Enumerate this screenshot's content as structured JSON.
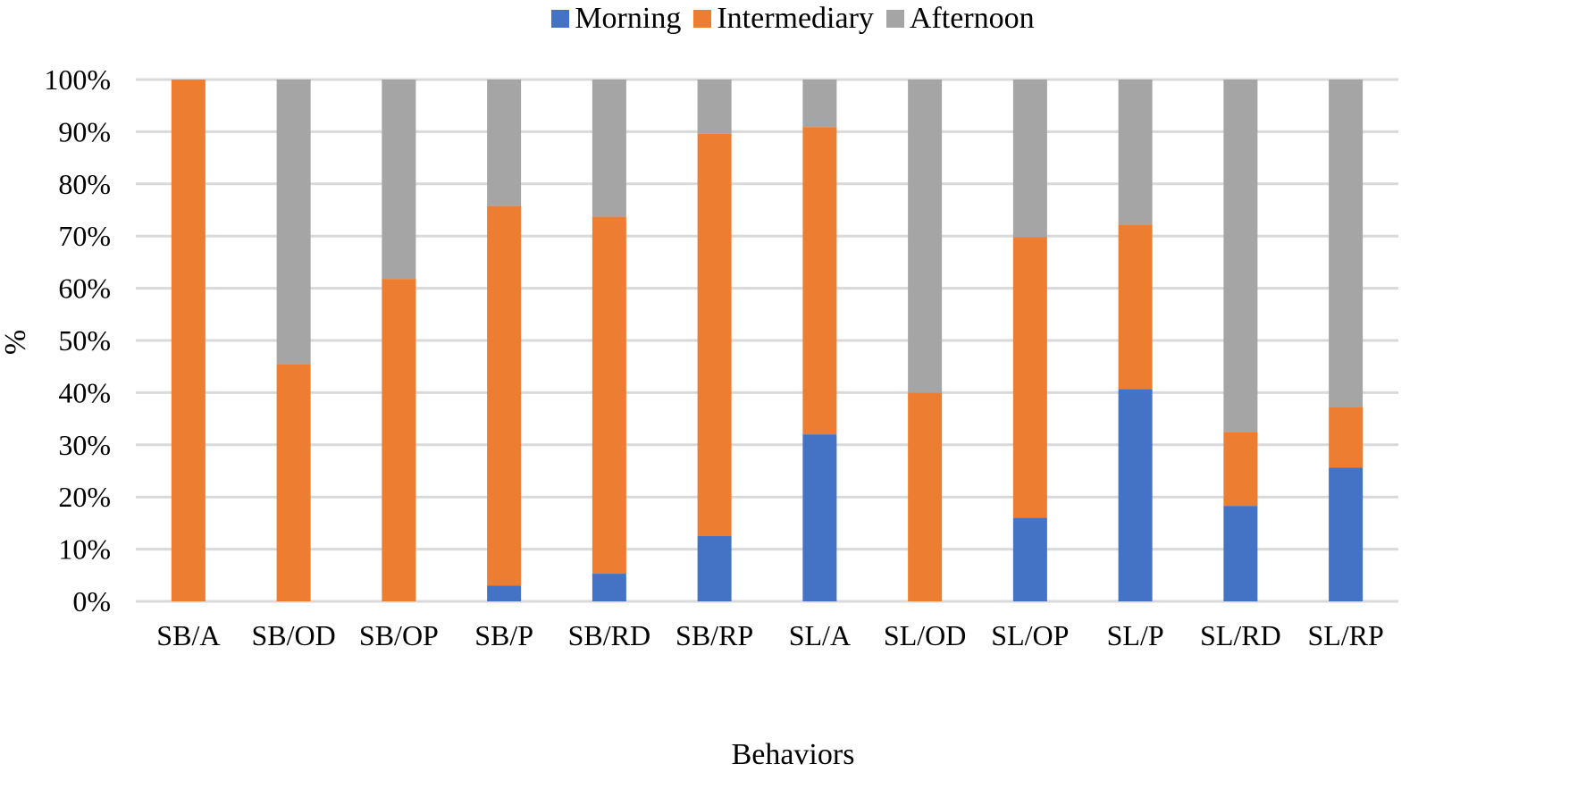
{
  "chart_data": {
    "type": "bar",
    "stacked": true,
    "percent": true,
    "title": "",
    "xlabel": "Behaviors",
    "ylabel": "%",
    "ylim": [
      0,
      100
    ],
    "yticks": [
      "0%",
      "10%",
      "20%",
      "30%",
      "40%",
      "50%",
      "60%",
      "70%",
      "80%",
      "90%",
      "100%"
    ],
    "grid": true,
    "legend_position": "top-center",
    "categories": [
      "SB/A",
      "SB/OD",
      "SB/OP",
      "SB/P",
      "SB/RD",
      "SB/RP",
      "SL/A",
      "SL/OD",
      "SL/OP",
      "SL/P",
      "SL/RD",
      "SL/RP"
    ],
    "series": [
      {
        "name": "Morning",
        "color": "#4472C4",
        "values": [
          0,
          0,
          0,
          3,
          5.3,
          12.5,
          32,
          0,
          16,
          40.7,
          18.3,
          25.6
        ]
      },
      {
        "name": "Intermediary",
        "color": "#ED7D31",
        "values": [
          100,
          45.5,
          61.8,
          72.8,
          68.4,
          77.1,
          58.9,
          40,
          53.8,
          31.5,
          14.2,
          11.7
        ]
      },
      {
        "name": "Afternoon",
        "color": "#A5A5A5",
        "values": [
          0,
          54.5,
          38.2,
          24.2,
          26.3,
          10.4,
          9.1,
          60,
          30.2,
          27.8,
          67.5,
          62.7
        ]
      }
    ]
  }
}
